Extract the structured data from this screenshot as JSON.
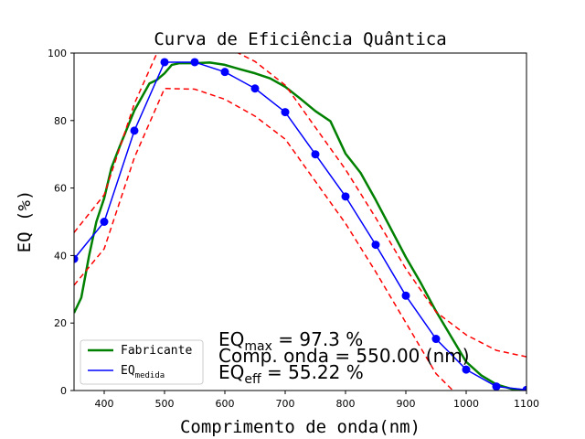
{
  "chart_data": {
    "type": "line",
    "title": "Curva de Eficiência Quântica",
    "xlabel": "Comprimento de onda(nm)",
    "ylabel": "EQ (%)",
    "xlim": [
      350,
      1100
    ],
    "ylim": [
      0,
      100
    ],
    "xticks": [
      400,
      500,
      600,
      700,
      800,
      900,
      1000,
      1100
    ],
    "yticks": [
      0,
      20,
      40,
      60,
      80,
      100
    ],
    "grid": false,
    "legend_position": "lower-left",
    "series": [
      {
        "name": "Fabricante",
        "color": "#008000",
        "style": "solid",
        "markers": false,
        "x": [
          350,
          362,
          375,
          387,
          400,
          412,
          425,
          450,
          475,
          487,
          500,
          512,
          525,
          550,
          575,
          600,
          625,
          650,
          675,
          700,
          725,
          750,
          775,
          800,
          825,
          850,
          875,
          900,
          925,
          950,
          975,
          1000,
          1025,
          1050,
          1075,
          1100
        ],
        "y": [
          23,
          27.5,
          40,
          50,
          57,
          66,
          72,
          83,
          91,
          92,
          94,
          96.5,
          97,
          97,
          97.2,
          96.5,
          95.2,
          94,
          92.5,
          90,
          86.5,
          82.8,
          79.8,
          70.2,
          64.5,
          56.5,
          48,
          39.5,
          31.8,
          23.5,
          16,
          8.5,
          4.5,
          1.8,
          0.5,
          0
        ]
      },
      {
        "name": "EQ_medida",
        "color": "#0000ff",
        "style": "solid",
        "markers": true,
        "x": [
          350,
          400,
          450,
          500,
          550,
          600,
          650,
          700,
          750,
          800,
          850,
          900,
          950,
          1000,
          1050,
          1100
        ],
        "y": [
          39,
          50,
          77,
          97.3,
          97.3,
          94.4,
          89.5,
          82.5,
          70,
          57.5,
          43.2,
          28.1,
          15.3,
          6.2,
          1.2,
          0.2
        ]
      },
      {
        "name": "",
        "color": "#ff0000",
        "style": "dashed",
        "markers": false,
        "x": [
          350,
          400,
          450,
          500,
          550,
          600,
          650,
          700,
          750,
          800,
          850,
          900,
          950,
          1000,
          1050,
          1100
        ],
        "y": [
          46.8,
          58,
          85,
          105,
          105,
          102,
          97.5,
          90.5,
          78,
          65.5,
          51.2,
          36.1,
          23.3,
          16.5,
          11.9,
          10
        ]
      },
      {
        "name": "",
        "color": "#ff0000",
        "style": "dashed",
        "markers": false,
        "x": [
          350,
          400,
          450,
          500,
          550,
          600,
          650,
          700,
          750,
          800,
          850,
          900,
          950,
          1000
        ],
        "y": [
          31.2,
          42,
          69,
          89.5,
          89.3,
          86.3,
          81.3,
          74.5,
          62,
          49.5,
          35.2,
          20.1,
          5,
          -3.9
        ]
      }
    ],
    "legend": [
      {
        "label_main": "Fabricante",
        "label_sub": "",
        "color": "#008000",
        "marker": false
      },
      {
        "label_main": "EQ",
        "label_sub": "medida",
        "color": "#0000ff",
        "marker": false
      }
    ],
    "annotations": {
      "line1": {
        "main": "EQ",
        "sub": "max",
        "text": " = 97.3 %"
      },
      "line2": {
        "text": "Comp. onda = 550.00 (nm)"
      },
      "line3": {
        "main": "EQ",
        "sub": "eff",
        "text": " = 55.22 %"
      }
    }
  }
}
